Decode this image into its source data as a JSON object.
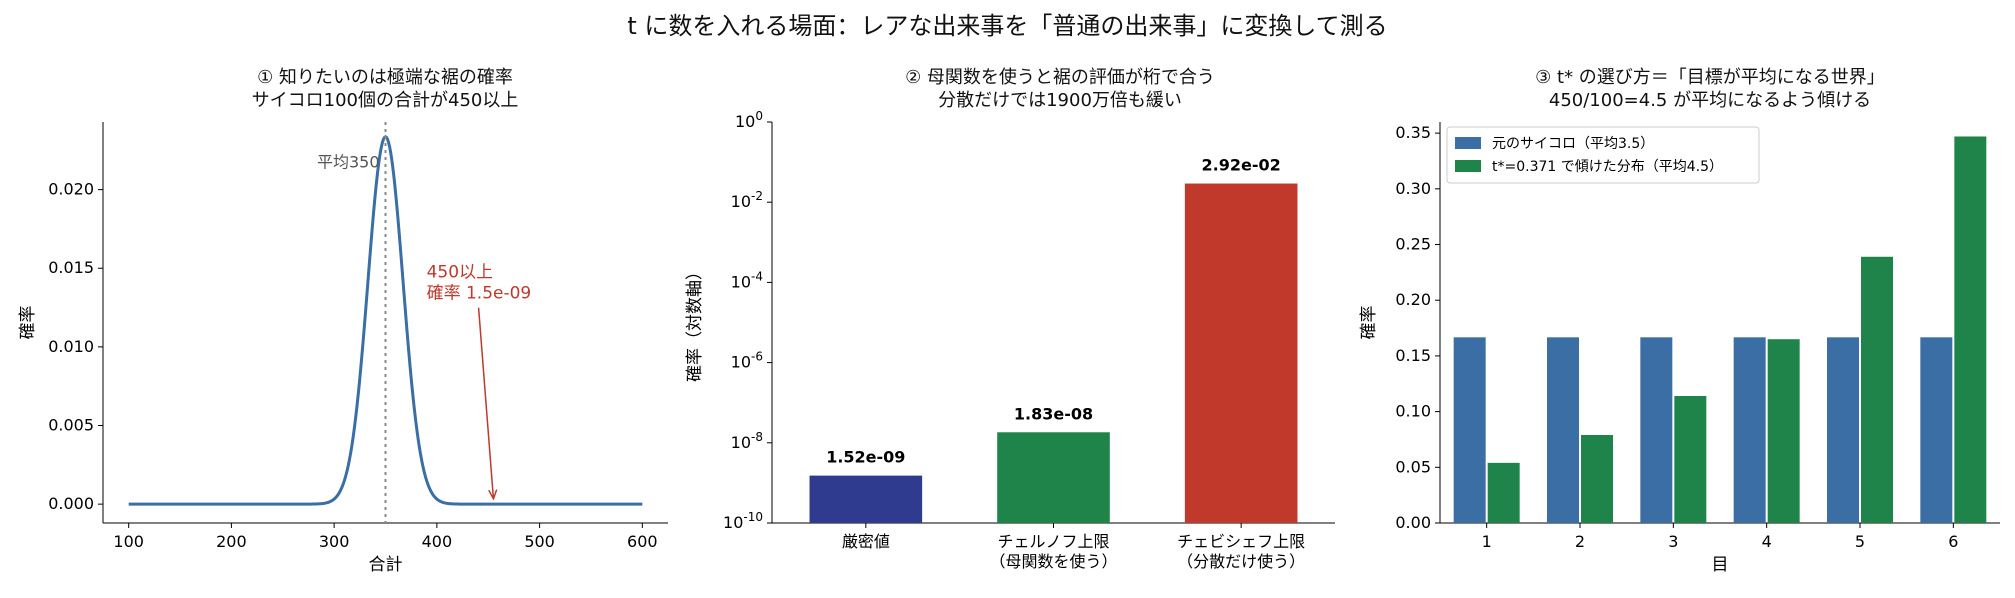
{
  "suptitle": "t に数を入れる場面：レアな出来事を「普通の出来事」に変換して測る",
  "charts": [
    {
      "type": "line",
      "title_lines": [
        "① 知りたいのは極端な裾の確率",
        "サイコロ100個の合計が450以上"
      ],
      "xlabel": "合計",
      "ylabel": "確率",
      "xlim": [
        75,
        625
      ],
      "ylim": [
        -0.0012,
        0.0243
      ],
      "xticks": [
        100,
        200,
        300,
        400,
        500,
        600
      ],
      "yticks": [
        0.0,
        0.005,
        0.01,
        0.015,
        0.02
      ],
      "ytick_labels": [
        "0.000",
        "0.005",
        "0.010",
        "0.015",
        "0.020"
      ],
      "series": [
        {
          "mean": 350,
          "sd": 17.08,
          "x_range": [
            100,
            600
          ],
          "color": "#3a6ea5"
        }
      ],
      "mean_line": {
        "x": 350,
        "label": "平均350",
        "color": "#888888"
      },
      "annotation": {
        "lines": [
          "450以上",
          "確率 1.5e-09"
        ],
        "color": "#c0392b",
        "text_xy": [
          390,
          0.0144
        ],
        "arrow_to": [
          455,
          0.0004
        ]
      }
    },
    {
      "type": "bar",
      "title_lines": [
        "② 母関数を使うと裾の評価が桁で合う",
        "分散だけでは1900万倍も緩い"
      ],
      "ylabel": "確率（対数軸）",
      "yscale": "log",
      "ylim": [
        1e-10,
        1
      ],
      "yticks": [
        -10,
        -8,
        -6,
        -4,
        -2,
        0
      ],
      "categories": [
        [
          "厳密値"
        ],
        [
          "チェルノフ上限",
          "（母関数を使う）"
        ],
        [
          "チェビシェフ上限",
          "（分散だけ使う）"
        ]
      ],
      "values": [
        1.52e-09,
        1.83e-08,
        0.0292
      ],
      "value_labels": [
        "1.52e-09",
        "1.83e-08",
        "2.92e-02"
      ],
      "colors": [
        "#2e3b8f",
        "#1e8449",
        "#c0392b"
      ]
    },
    {
      "type": "bar",
      "title_lines": [
        "③ t* の選び方＝「目標が平均になる世界」",
        "450/100=4.5 が平均になるよう傾ける"
      ],
      "xlabel": "目",
      "ylabel": "確率",
      "ylim": [
        0,
        0.36
      ],
      "yticks": [
        0.0,
        0.05,
        0.1,
        0.15,
        0.2,
        0.25,
        0.3,
        0.35
      ],
      "ytick_labels": [
        "0.00",
        "0.05",
        "0.10",
        "0.15",
        "0.20",
        "0.25",
        "0.30",
        "0.35"
      ],
      "categories": [
        "1",
        "2",
        "3",
        "4",
        "5",
        "6"
      ],
      "legend_position": "top-left",
      "series": [
        {
          "name": "元のサイコロ（平均3.5）",
          "values": [
            0.1667,
            0.1667,
            0.1667,
            0.1667,
            0.1667,
            0.1667
          ],
          "color": "#3a6ea5"
        },
        {
          "name": "t*=0.371 で傾けた分布（平均4.5）",
          "values": [
            0.054,
            0.079,
            0.114,
            0.165,
            0.239,
            0.347
          ],
          "color": "#1e8449"
        }
      ]
    }
  ]
}
